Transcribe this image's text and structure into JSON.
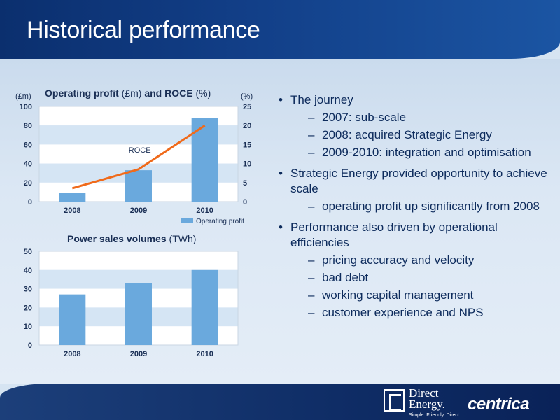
{
  "slide": {
    "title": "Historical performance"
  },
  "chart_data": [
    {
      "type": "bar+line",
      "title_bold_1": "Operating profit",
      "title_normal_1": " (£m) ",
      "title_bold_2": "and ROCE",
      "title_normal_2": " (%)",
      "left_axis_unit": "(£m)",
      "right_axis_unit": "(%)",
      "categories": [
        "2008",
        "2009",
        "2010"
      ],
      "ylim": [
        0,
        100
      ],
      "yticks": [
        "0",
        "20",
        "40",
        "60",
        "80",
        "100"
      ],
      "y2lim": [
        0,
        25
      ],
      "y2ticks": [
        "0",
        "5",
        "10",
        "15",
        "20",
        "25"
      ],
      "series": [
        {
          "name": "Operating profit",
          "type": "bar",
          "axis": "left",
          "values": [
            9,
            33,
            88
          ]
        },
        {
          "name": "ROCE",
          "type": "line",
          "axis": "right",
          "values": [
            3.5,
            8.5,
            20
          ]
        }
      ],
      "legend": "bottom-right",
      "grid": "bands"
    },
    {
      "type": "bar",
      "title_bold": "Power sales volumes",
      "title_normal": " (TWh)",
      "categories": [
        "2008",
        "2009",
        "2010"
      ],
      "ylim": [
        0,
        50
      ],
      "yticks": [
        "0",
        "10",
        "20",
        "30",
        "40",
        "50"
      ],
      "values": [
        27,
        33,
        40
      ],
      "grid": "bands"
    }
  ],
  "bullets": [
    {
      "text": "The journey",
      "subs": [
        "2007: sub-scale",
        "2008: acquired Strategic Energy",
        "2009-2010: integration and optimisation"
      ]
    },
    {
      "text": "Strategic Energy provided opportunity to achieve scale",
      "subs": [
        "operating profit up significantly from 2008"
      ]
    },
    {
      "text": "Performance also driven by operational efficiencies",
      "subs": [
        "pricing accuracy and velocity",
        "bad debt",
        "working capital management",
        "customer experience and NPS"
      ]
    }
  ],
  "footer": {
    "direct_energy_line1": "Direct",
    "direct_energy_line2": "Energy.",
    "direct_energy_tagline": "Simple. Friendly. Direct.",
    "centrica": "centrica"
  },
  "colors": {
    "bar": "#6aa9dd",
    "line": "#f06a1a",
    "band_light": "#ffffff",
    "band_dark": "#d5e5f4",
    "text": "#0d2b5c"
  }
}
